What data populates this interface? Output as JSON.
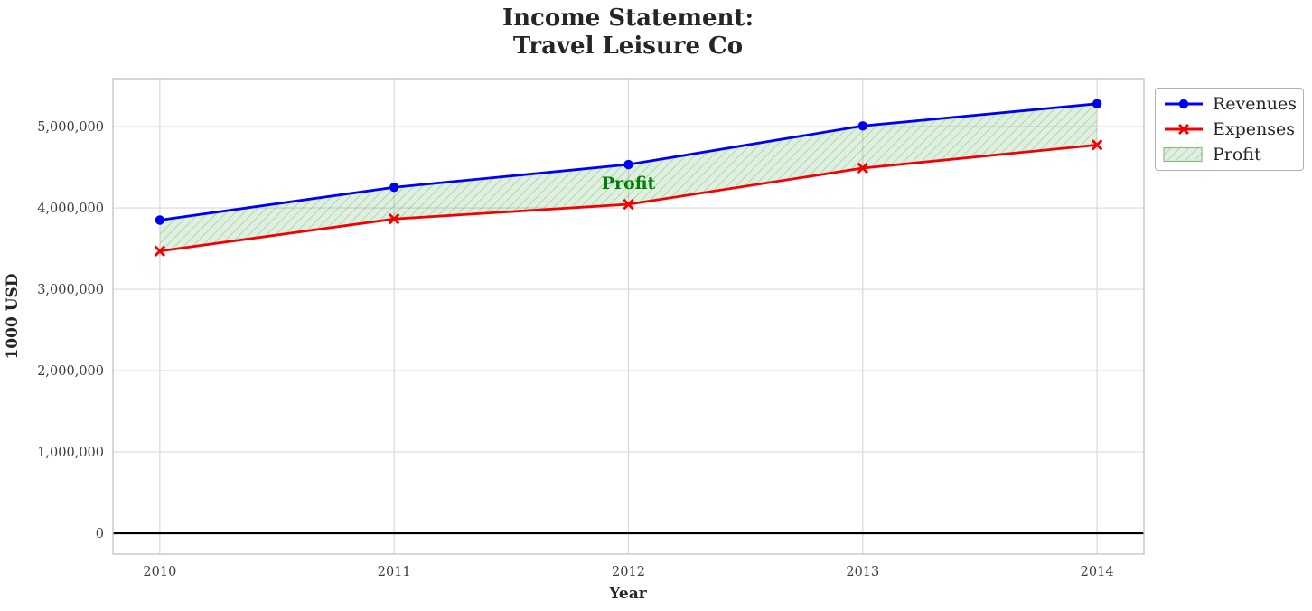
{
  "chart_data": {
    "type": "line",
    "title": "Income Statement:\nTravel Leisure Co",
    "xlabel": "Year",
    "ylabel": "1000 USD",
    "x": [
      2010,
      2011,
      2012,
      2013,
      2014
    ],
    "xtick_labels": [
      "2010",
      "2011",
      "2012",
      "2013",
      "2014"
    ],
    "yticks": [
      0,
      1000000,
      2000000,
      3000000,
      4000000,
      5000000
    ],
    "ytick_labels": [
      "0",
      "1,000,000",
      "2,000,000",
      "3,000,000",
      "4,000,000",
      "5,000,000"
    ],
    "xlim": [
      2009.8,
      2014.2
    ],
    "ylim": [
      -255000,
      5590000
    ],
    "grid": true,
    "legend_position": "upper right, outside axes",
    "series": [
      {
        "name": "Revenues",
        "color": "#0000f5",
        "marker": "circle",
        "line_width": 2.8,
        "values": [
          3851000,
          4254000,
          4534000,
          5009000,
          5281000
        ]
      },
      {
        "name": "Expenses",
        "color": "#f50000",
        "marker": "x",
        "line_width": 2.8,
        "values": [
          3470000,
          3865000,
          4045000,
          4490000,
          4775000
        ]
      }
    ],
    "profit_area": {
      "label": "Profit",
      "hatch": "//",
      "face_color": "rgba(0,128,0,0.12)",
      "hatch_color": "rgba(0,128,0,0.25)",
      "edge_color": "#8cb98c"
    },
    "annotation": {
      "text": "Profit",
      "x": 2012,
      "y": 4305000,
      "color": "#008000"
    },
    "zero_line_color": "#000000",
    "colors": {
      "grid": "#d9d9d9",
      "spine": "#c6c6c6",
      "tick_label": "#3c3c3c",
      "text": "#262626",
      "plot_background": "#ffffff"
    }
  }
}
